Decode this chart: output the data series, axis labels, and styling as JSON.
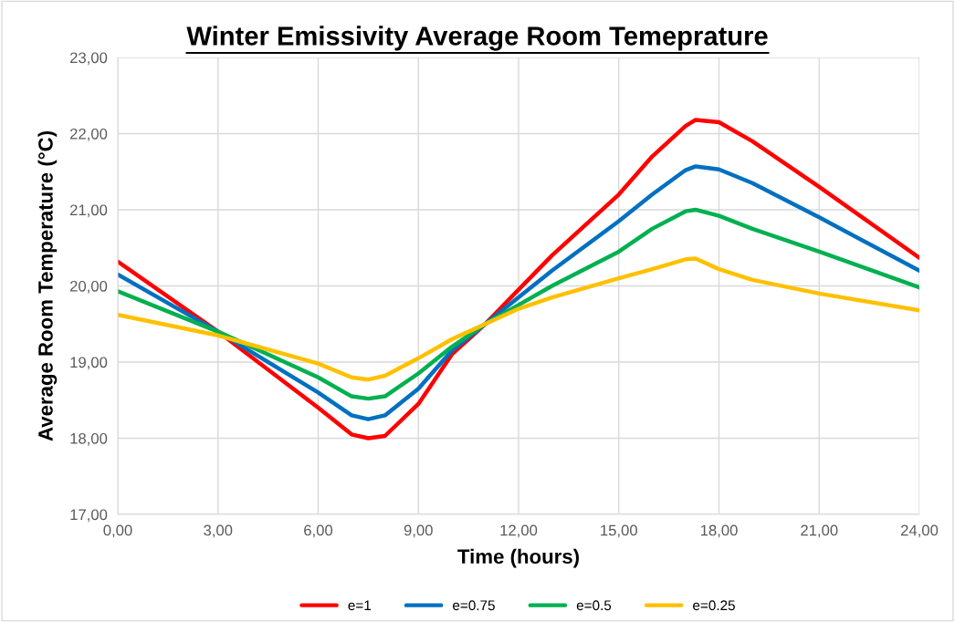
{
  "chart_data": {
    "type": "line",
    "title": "Winter Emissivity Average Room Temeprature",
    "xlabel": "Time (hours)",
    "ylabel": "Average Room Temperature (°C)",
    "xlim": [
      0,
      24
    ],
    "ylim": [
      17,
      23
    ],
    "xticks": [
      {
        "value": 0,
        "label": "0,00"
      },
      {
        "value": 3,
        "label": "3,00"
      },
      {
        "value": 6,
        "label": "6,00"
      },
      {
        "value": 9,
        "label": "9,00"
      },
      {
        "value": 12,
        "label": "12,00"
      },
      {
        "value": 15,
        "label": "15,00"
      },
      {
        "value": 18,
        "label": "18,00"
      },
      {
        "value": 21,
        "label": "21,00"
      },
      {
        "value": 24,
        "label": "24,00"
      }
    ],
    "yticks": [
      {
        "value": 17,
        "label": "17,00"
      },
      {
        "value": 18,
        "label": "18,00"
      },
      {
        "value": 19,
        "label": "19,00"
      },
      {
        "value": 20,
        "label": "20,00"
      },
      {
        "value": 21,
        "label": "21,00"
      },
      {
        "value": 22,
        "label": "22,00"
      },
      {
        "value": 23,
        "label": "23,00"
      }
    ],
    "x": [
      0,
      3,
      6,
      7,
      7.5,
      8,
      9,
      10,
      11,
      12,
      13,
      15,
      16,
      17,
      17.3,
      18,
      19,
      21,
      24
    ],
    "series": [
      {
        "name": "e=1",
        "color": "#ff0000",
        "values": [
          20.32,
          19.4,
          18.4,
          18.05,
          18.0,
          18.03,
          18.45,
          19.1,
          19.5,
          19.95,
          20.4,
          21.2,
          21.7,
          22.1,
          22.18,
          22.15,
          21.9,
          21.3,
          20.37
        ]
      },
      {
        "name": "e=0.75",
        "color": "#0070c0",
        "values": [
          20.15,
          19.4,
          18.6,
          18.3,
          18.25,
          18.3,
          18.65,
          19.15,
          19.5,
          19.85,
          20.2,
          20.85,
          21.2,
          21.52,
          21.57,
          21.53,
          21.35,
          20.9,
          20.2
        ]
      },
      {
        "name": "e=0.5",
        "color": "#00b050",
        "values": [
          19.93,
          19.4,
          18.8,
          18.55,
          18.52,
          18.55,
          18.85,
          19.2,
          19.5,
          19.75,
          20.0,
          20.45,
          20.75,
          20.98,
          21.0,
          20.92,
          20.75,
          20.45,
          19.98
        ]
      },
      {
        "name": "e=0.25",
        "color": "#ffc000",
        "values": [
          19.62,
          19.35,
          18.98,
          18.8,
          18.77,
          18.82,
          19.05,
          19.3,
          19.5,
          19.7,
          19.85,
          20.1,
          20.22,
          20.35,
          20.36,
          20.22,
          20.08,
          19.9,
          19.68
        ]
      }
    ],
    "grid": true,
    "legend": "bottom",
    "marker": "none",
    "line_style": "solid"
  }
}
